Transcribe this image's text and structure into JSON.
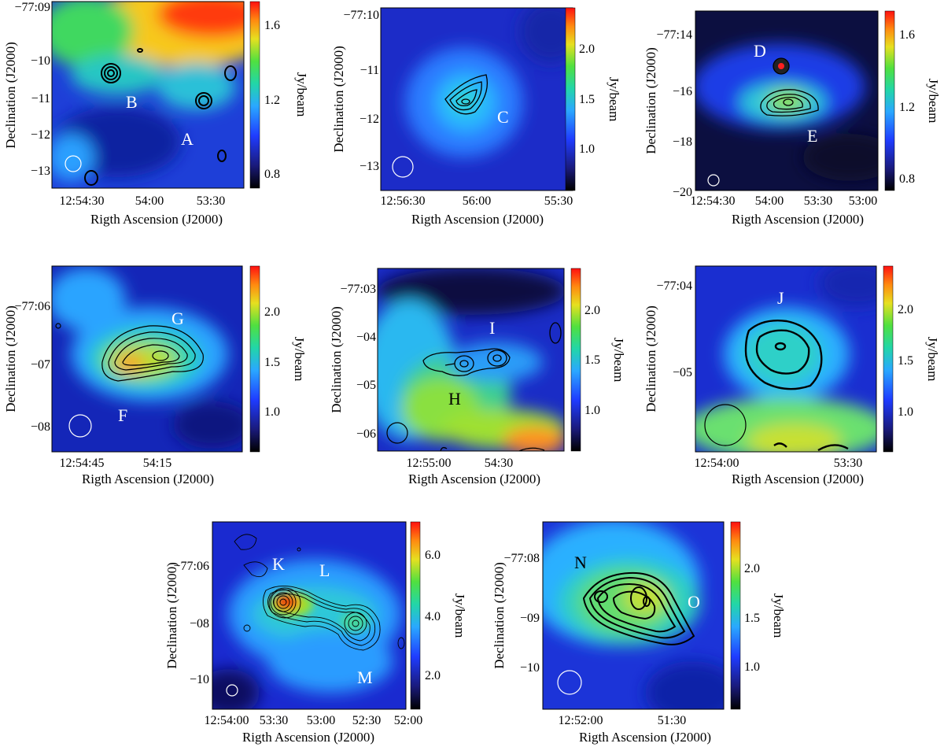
{
  "chart_data": [
    {
      "type": "heatmap",
      "panel": "top-left",
      "xlabel": "Rigth Ascension (J2000)",
      "ylabel": "Declination (J2000)",
      "xticks": [
        "12:54:30",
        "54:00",
        "53:30"
      ],
      "yticks": [
        "−77:09",
        "−10",
        "−11",
        "−12",
        "−13"
      ],
      "colorbar": {
        "label": "Jy/beam",
        "ticks": [
          "1.6",
          "1.2",
          "0.8"
        ],
        "range": [
          0.7,
          1.75
        ]
      },
      "sources": [
        "A",
        "B"
      ],
      "colormap": "rainbow"
    },
    {
      "type": "heatmap",
      "panel": "top-center",
      "xlabel": "Rigth Ascension (J2000)",
      "ylabel": "Declination (J2000)",
      "xticks": [
        "12:56:30",
        "56:00",
        "55:30"
      ],
      "yticks": [
        "−77:10",
        "−11",
        "−12",
        "−13"
      ],
      "colorbar": {
        "label": "Jy/beam",
        "ticks": [
          "2.0",
          "1.5",
          "1.0"
        ],
        "range": [
          0.7,
          2.4
        ]
      },
      "sources": [
        "C"
      ],
      "colormap": "rainbow"
    },
    {
      "type": "heatmap",
      "panel": "top-right",
      "xlabel": "Rigth Ascension (J2000)",
      "ylabel": "Declination (J2000)",
      "xticks": [
        "12:54:30",
        "54:00",
        "53:30",
        "53:00"
      ],
      "yticks": [
        "−77:14",
        "−16",
        "−18",
        "−20"
      ],
      "colorbar": {
        "label": "Jy/beam",
        "ticks": [
          "1.6",
          "1.2",
          "0.8"
        ],
        "range": [
          0.7,
          1.75
        ]
      },
      "sources": [
        "D",
        "E"
      ],
      "colormap": "rainbow"
    },
    {
      "type": "heatmap",
      "panel": "middle-left",
      "xlabel": "Rigth Ascension (J2000)",
      "ylabel": "Declination (J2000)",
      "xticks": [
        "12:54:45",
        "54:15"
      ],
      "yticks": [
        "−77:06",
        "−07",
        "−08"
      ],
      "colorbar": {
        "label": "Jy/beam",
        "ticks": [
          "2.0",
          "1.5",
          "1.0"
        ],
        "range": [
          0.7,
          2.4
        ]
      },
      "sources": [
        "F",
        "G"
      ],
      "colormap": "rainbow"
    },
    {
      "type": "heatmap",
      "panel": "middle-center",
      "xlabel": "Rigth Ascension (J2000)",
      "ylabel": "Declination (J2000)",
      "xticks": [
        "12:55:00",
        "54:30"
      ],
      "yticks": [
        "−77:03",
        "−04",
        "−05",
        "−06"
      ],
      "colorbar": {
        "label": "Jy/beam",
        "ticks": [
          "2.0",
          "1.5",
          "1.0"
        ],
        "range": [
          0.7,
          2.4
        ]
      },
      "sources": [
        "H",
        "I"
      ],
      "colormap": "rainbow"
    },
    {
      "type": "heatmap",
      "panel": "middle-right",
      "xlabel": "Rigth Ascension (J2000)",
      "ylabel": "Declination (J2000)",
      "xticks": [
        "12:54:00",
        "53:30"
      ],
      "yticks": [
        "−77:04",
        "−05"
      ],
      "colorbar": {
        "label": "Jy/beam",
        "ticks": [
          "2.0",
          "1.5",
          "1.0"
        ],
        "range": [
          0.7,
          2.4
        ]
      },
      "sources": [
        "J"
      ],
      "colormap": "rainbow"
    },
    {
      "type": "heatmap",
      "panel": "bottom-left",
      "xlabel": "Rigth Ascension (J2000)",
      "ylabel": "Declination (J2000)",
      "xticks": [
        "12:54:00",
        "53:30",
        "53:00",
        "52:30",
        "52:00"
      ],
      "yticks": [
        "−77:06",
        "−08",
        "−10"
      ],
      "colorbar": {
        "label": "Jy/beam",
        "ticks": [
          "6.0",
          "4.0",
          "2.0"
        ],
        "range": [
          0.8,
          7.2
        ]
      },
      "sources": [
        "K",
        "L",
        "M"
      ],
      "colormap": "rainbow"
    },
    {
      "type": "heatmap",
      "panel": "bottom-right",
      "xlabel": "Rigth Ascension (J2000)",
      "ylabel": "Declination (J2000)",
      "xticks": [
        "12:52:00",
        "51:30"
      ],
      "yticks": [
        "−77:08",
        "−09",
        "−10"
      ],
      "colorbar": {
        "label": "Jy/beam",
        "ticks": [
          "2.0",
          "1.5",
          "1.0"
        ],
        "range": [
          0.7,
          2.4
        ]
      },
      "sources": [
        "N",
        "O"
      ],
      "colormap": "rainbow"
    }
  ]
}
